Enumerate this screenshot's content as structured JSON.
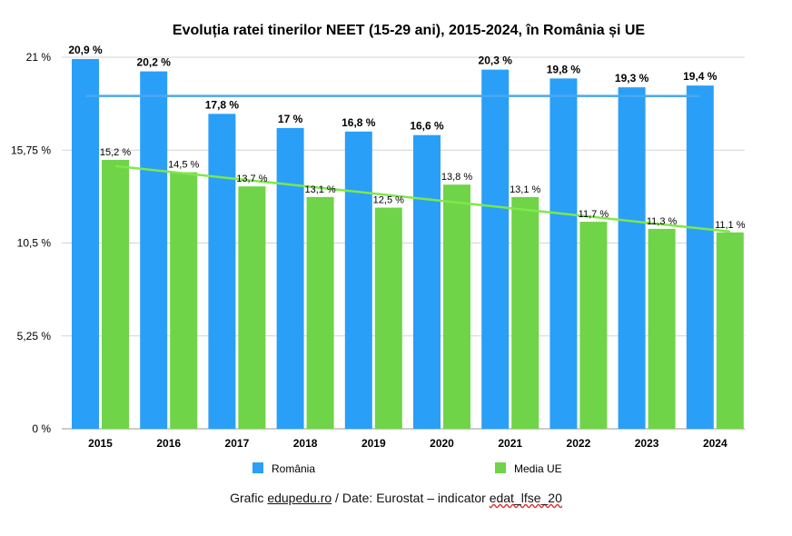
{
  "chart_data": {
    "type": "bar",
    "title": "Evoluția ratei tinerilor NEET (15-29 ani), 2015-2024, în România și UE",
    "categories": [
      "2015",
      "2016",
      "2017",
      "2018",
      "2019",
      "2020",
      "2021",
      "2022",
      "2023",
      "2024"
    ],
    "ylim": [
      0,
      21
    ],
    "yticks": [
      0,
      5.25,
      10.5,
      15.75,
      21
    ],
    "ytick_labels": [
      "0 %",
      "5,25 %",
      "10,5 %",
      "15,75 %",
      "21 %"
    ],
    "grid": true,
    "legend_position": "bottom",
    "series": [
      {
        "name": "România",
        "color": "#2a9ff7",
        "values": [
          20.9,
          20.2,
          17.8,
          17,
          16.8,
          16.6,
          20.3,
          19.8,
          19.3,
          19.4
        ],
        "labels": [
          "20,9 %",
          "20,2 %",
          "17,8 %",
          "17 %",
          "16,8 %",
          "16,6 %",
          "20,3 %",
          "19,8 %",
          "19,3 %",
          "19,4 %"
        ],
        "trendline_color": "#4aa8f0"
      },
      {
        "name": "Media UE",
        "color": "#6fd448",
        "values": [
          15.2,
          14.5,
          13.7,
          13.1,
          12.5,
          13.8,
          13.1,
          11.7,
          11.3,
          11.1
        ],
        "labels": [
          "15,2 %",
          "14,5 %",
          "13,7 %",
          "13,1 %",
          "12,5 %",
          "13,8 %",
          "13,1 %",
          "11,7 %",
          "11,3 %",
          "11,1 %"
        ],
        "trendline_color": "#7ee84a"
      }
    ]
  },
  "footer": {
    "prefix": "Grafic ",
    "site": "edupedu.ro",
    "middle": " / Date: Eurostat – indicator ",
    "indicator": "edat_lfse_20"
  }
}
